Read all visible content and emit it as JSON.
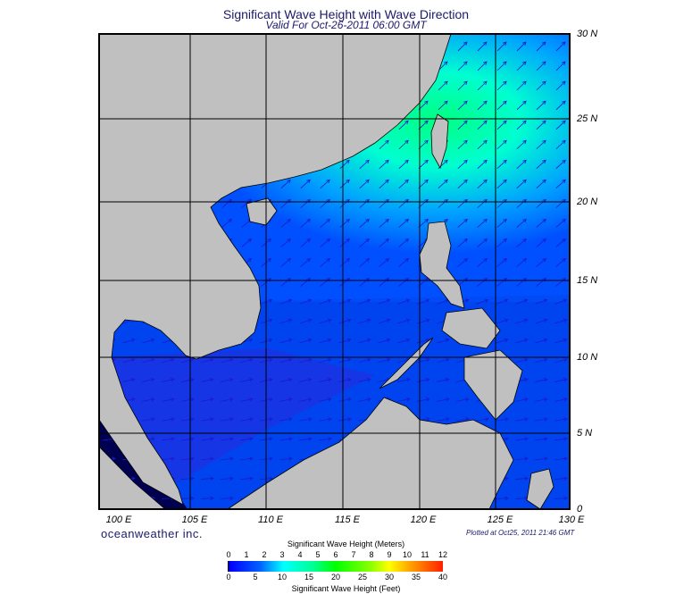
{
  "title": "Significant Wave Height with Wave Direction",
  "subtitle": "Valid For Oct-26-2011 06:00 GMT",
  "lon_labels": [
    "100 E",
    "105 E",
    "110 E",
    "115 E",
    "120 E",
    "125 E",
    "130 E"
  ],
  "lat_labels": [
    "30 N",
    "25 N",
    "20 N",
    "15 N",
    "10 N",
    "5 N",
    "0"
  ],
  "logo": "oceanweather inc.",
  "plotted": "Plotted at Oct25, 2011 21:46 GMT",
  "colorbar": {
    "meters_title": "Significant Wave Height (Meters)",
    "feet_title": "Significant Wave Height (Feet)",
    "meters_ticks": [
      "0",
      "1",
      "2",
      "3",
      "4",
      "5",
      "6",
      "7",
      "8",
      "9",
      "10",
      "11",
      "12"
    ],
    "feet_ticks": [
      "0",
      "5",
      "10",
      "15",
      "20",
      "25",
      "30",
      "35",
      "40"
    ]
  },
  "colors": {
    "land": "#c0c0c0",
    "deep_blue": "#0000e0",
    "mid_blue": "#0060ff",
    "cyan": "#00e0ff",
    "green": "#00ff80",
    "arrow": "#1a1acc"
  }
}
